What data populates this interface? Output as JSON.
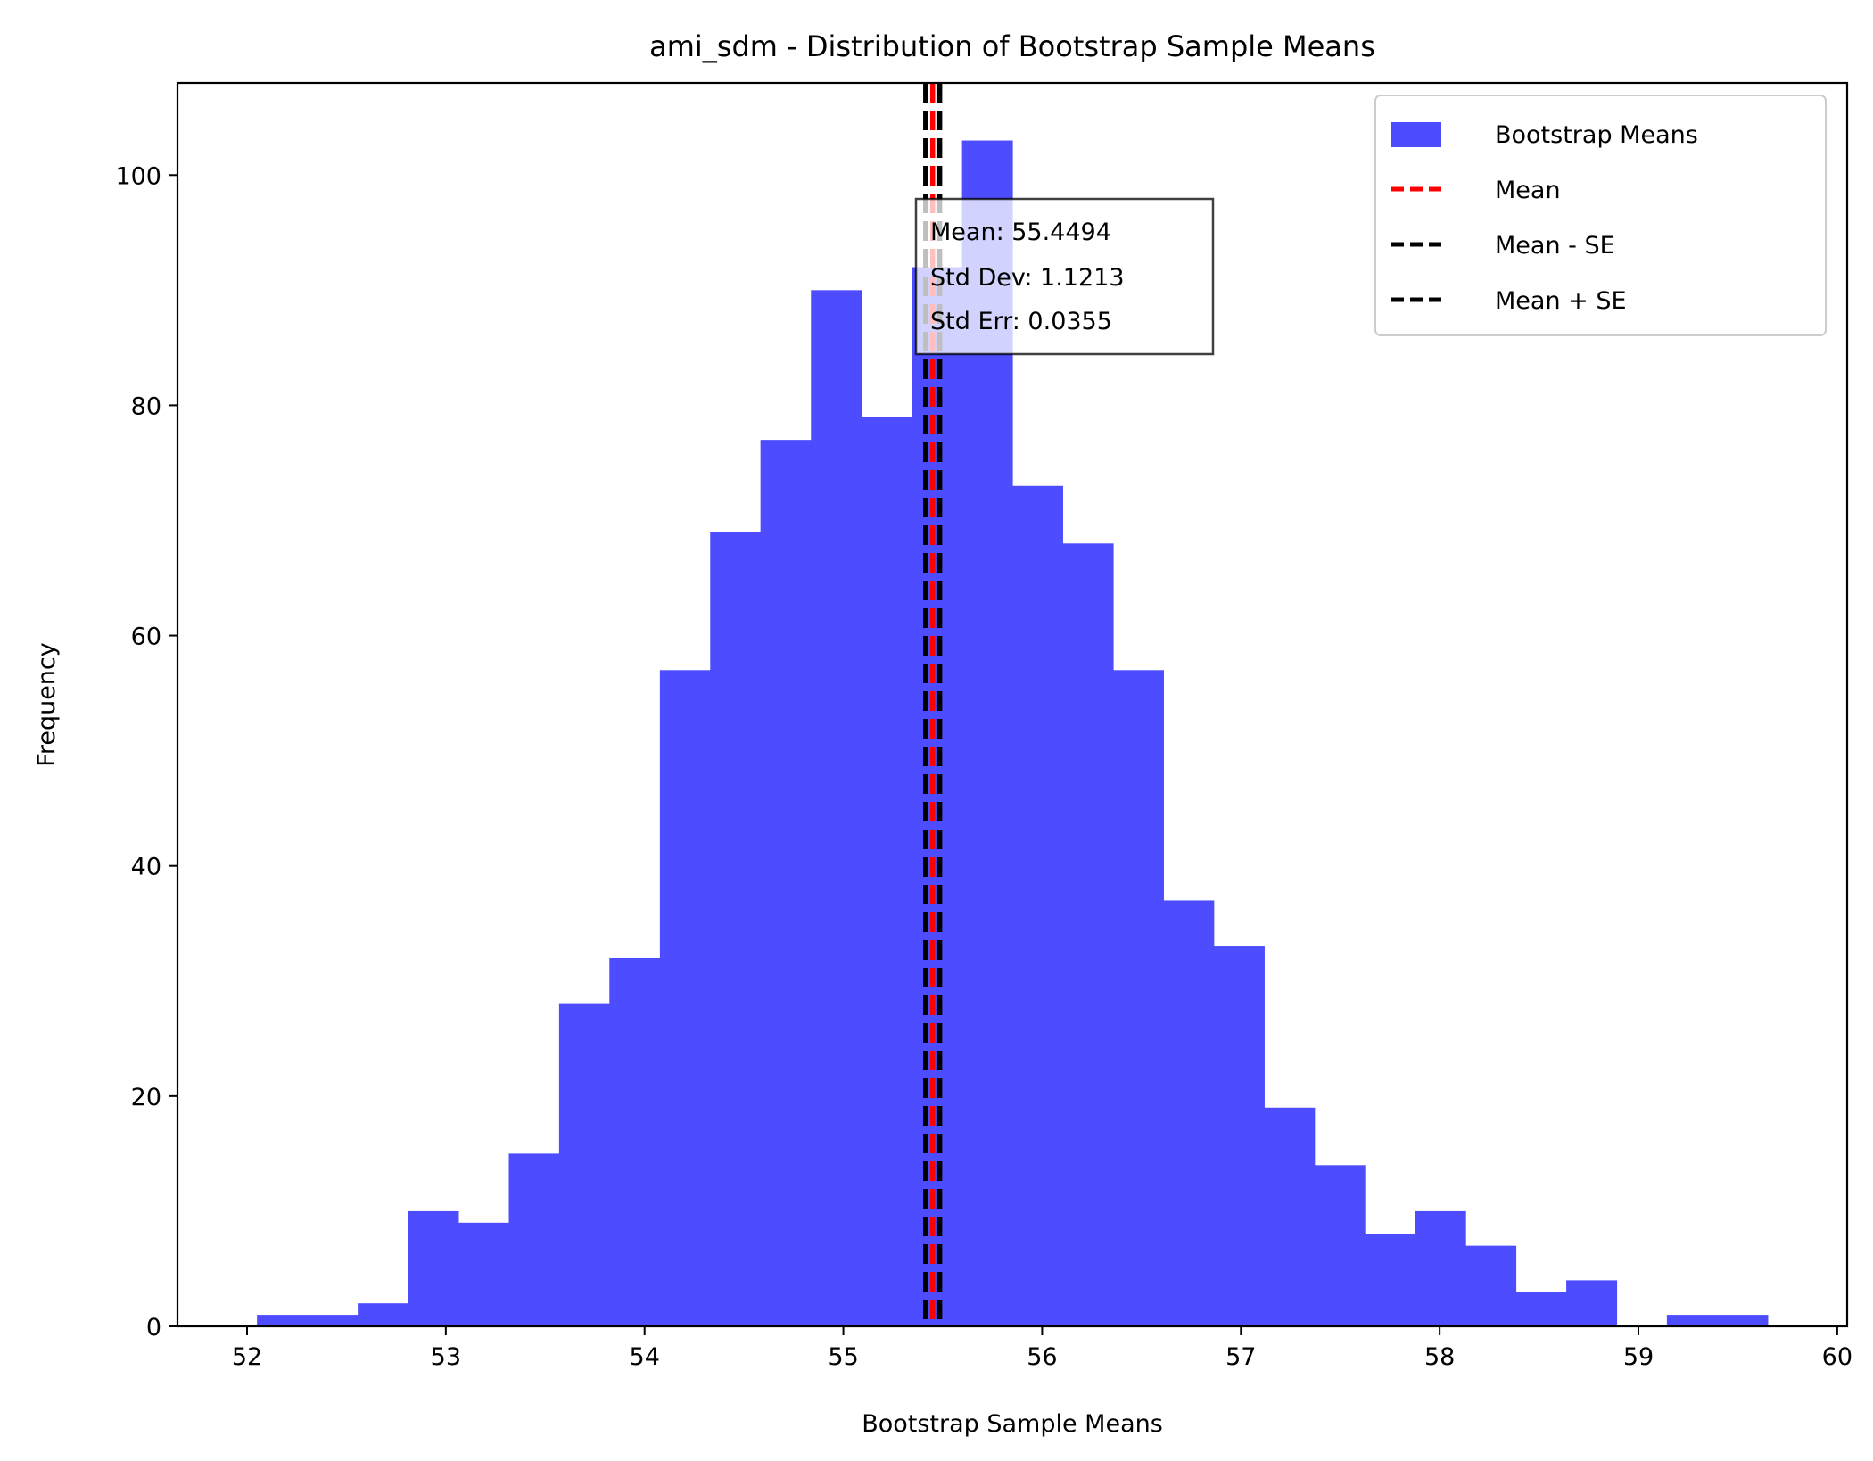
{
  "chart_data": {
    "type": "bar",
    "title": "ami_sdm - Distribution of Bootstrap Sample Means",
    "xlabel": "Bootstrap Sample Means",
    "ylabel": "Frequency",
    "xlim": [
      51.65,
      60.05
    ],
    "ylim": [
      0,
      108
    ],
    "xticks": [
      52,
      53,
      54,
      55,
      56,
      57,
      58,
      59,
      60
    ],
    "yticks": [
      0,
      20,
      40,
      60,
      80,
      100
    ],
    "grid": false,
    "legend_position": "top-right",
    "bin_edges": [
      52.05,
      52.303,
      52.557,
      52.81,
      53.063,
      53.317,
      53.57,
      53.823,
      54.077,
      54.33,
      54.583,
      54.837,
      55.09,
      55.343,
      55.597,
      55.85,
      56.103,
      56.357,
      56.61,
      56.863,
      57.117,
      57.37,
      57.623,
      57.877,
      58.13,
      58.383,
      58.637,
      58.89,
      59.143,
      59.397,
      59.65
    ],
    "counts": [
      1,
      1,
      2,
      10,
      9,
      15,
      28,
      32,
      57,
      69,
      77,
      90,
      79,
      92,
      103,
      73,
      68,
      57,
      37,
      33,
      19,
      14,
      8,
      10,
      7,
      3,
      4,
      0,
      1,
      1
    ],
    "series": [
      {
        "name": "Bootstrap Means",
        "kind": "histogram",
        "color": "#4d4dff"
      },
      {
        "name": "Mean",
        "kind": "vline",
        "x": 55.4494,
        "color": "#ff0000",
        "style": "dashed"
      },
      {
        "name": "Mean - SE",
        "kind": "vline",
        "x": 55.4139,
        "color": "#000000",
        "style": "dashed"
      },
      {
        "name": "Mean + SE",
        "kind": "vline",
        "x": 55.4849,
        "color": "#000000",
        "style": "dashed"
      }
    ],
    "stats_box": {
      "lines": [
        "Mean: 55.4494",
        "Std Dev: 1.1213",
        "Std Err: 0.0355"
      ]
    }
  }
}
